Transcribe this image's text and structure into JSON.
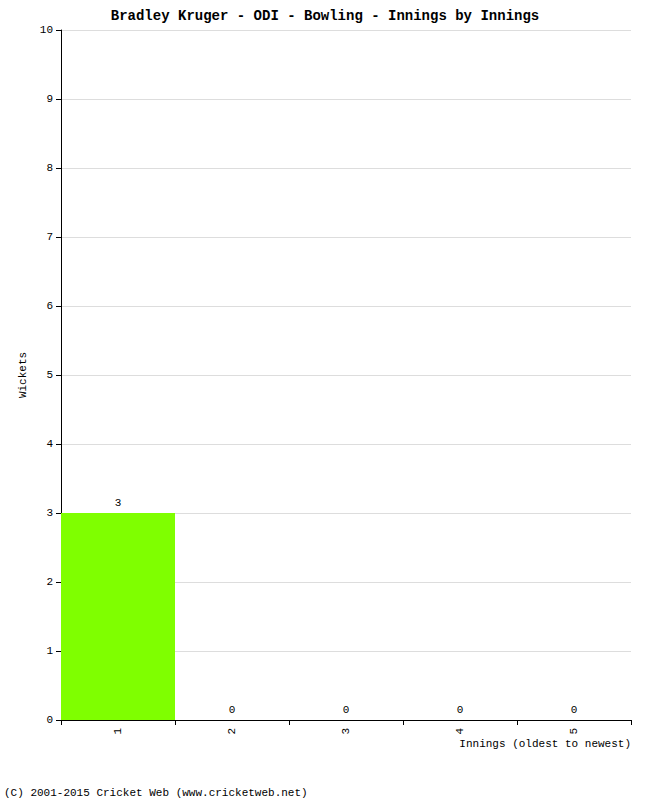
{
  "chart_data": {
    "type": "bar",
    "title": "Bradley Kruger - ODI - Bowling - Innings by Innings",
    "x_label": "Innings (oldest to newest)",
    "y_label": "Wickets",
    "categories": [
      "1",
      "2",
      "3",
      "4",
      "5"
    ],
    "values": [
      3,
      0,
      0,
      0,
      0
    ],
    "color": "#7fff00",
    "ylim": [
      0,
      10
    ],
    "yticks": [
      0,
      1,
      2,
      3,
      4,
      5,
      6,
      7,
      8,
      9,
      10
    ],
    "grid": true,
    "data_labels": true,
    "annotations": [
      "(C) 2001-2015 Cricket Web (www.cricketweb.net)"
    ]
  }
}
